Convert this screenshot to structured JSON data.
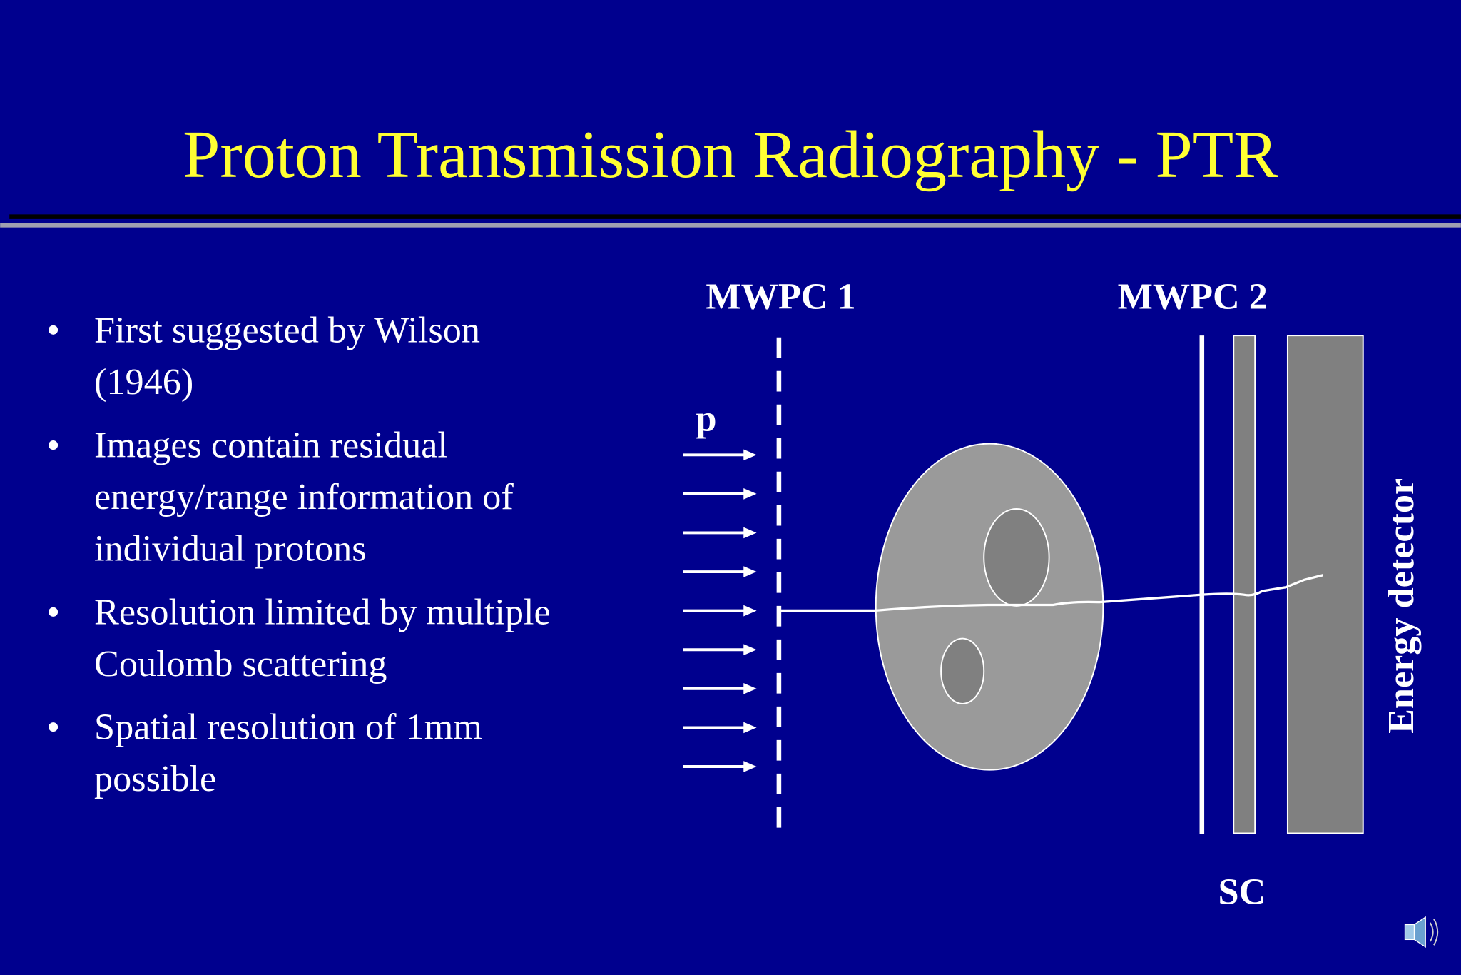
{
  "header": {
    "title": "Proton Transmission Radiography - PTR"
  },
  "bullets": [
    {
      "lines": [
        "First suggested by Wilson",
        "(1946)"
      ]
    },
    {
      "lines": [
        "Images contain residual",
        "energy/range information of",
        "individual protons"
      ]
    },
    {
      "lines": [
        "Resolution limited by multiple",
        "Coulomb scattering"
      ]
    },
    {
      "lines": [
        "Spatial resolution of 1mm",
        "possible"
      ]
    }
  ],
  "diagram": {
    "mwpc1": "MWPC 1",
    "mwpc2": "MWPC 2",
    "beam": "p",
    "sc": "SC",
    "energy_detector": "Energy detector"
  }
}
